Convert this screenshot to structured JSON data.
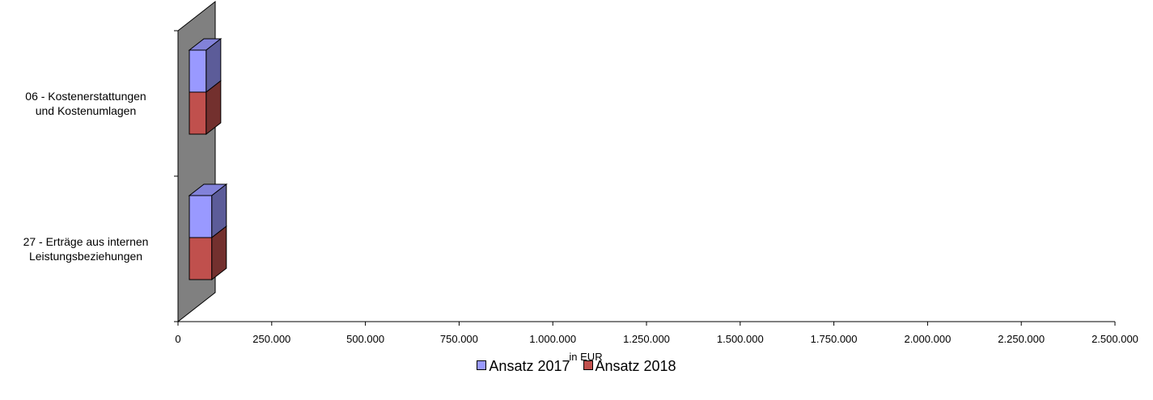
{
  "chart_data": {
    "type": "bar",
    "orientation": "horizontal",
    "stacked": true,
    "three_d": true,
    "categories": [
      "06 - Kostenerstattungen und Kostenumlagen",
      "27 - Erträge aus internen Leistungsbeziehungen"
    ],
    "category_lines": [
      [
        "06 - Kostenerstattungen",
        "und Kostenumlagen"
      ],
      [
        "27 - Erträge aus internen",
        "Leistungsbeziehungen"
      ]
    ],
    "series": [
      {
        "name": "Ansatz 2017",
        "color": "#9999ff",
        "values": [
          45000,
          60000
        ]
      },
      {
        "name": "Ansatz 2018",
        "color": "#c0504d",
        "values": [
          45000,
          60000
        ]
      }
    ],
    "xlabel": "in EUR",
    "xlim": [
      0,
      2500000
    ],
    "xticks": [
      0,
      250000,
      500000,
      750000,
      1000000,
      1250000,
      1500000,
      1750000,
      2000000,
      2250000,
      2500000
    ],
    "xtick_labels": [
      "0",
      "250.000",
      "500.000",
      "750.000",
      "1.000.000",
      "1.250.000",
      "1.500.000",
      "1.750.000",
      "2.000.000",
      "2.250.000",
      "2.500.000"
    ],
    "grid": false,
    "legend_position": "bottom",
    "wall_color": "#808080"
  }
}
